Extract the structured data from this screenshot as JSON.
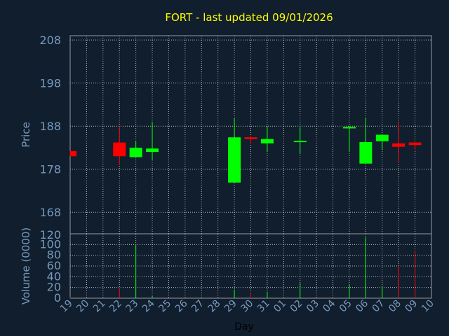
{
  "title": "FORT - last updated 09/01/2026",
  "colors": {
    "background": "#101e2e",
    "frame": "#999999",
    "grid": "#bbbbbb",
    "text": "#7799bb",
    "title": "#ffff00",
    "up": "#00ff00",
    "down": "#ff0000"
  },
  "chart_data": [
    {
      "type": "candlestick",
      "ylabel": "Price",
      "ylim": [
        163,
        209
      ],
      "yticks": [
        208,
        198,
        188,
        178,
        168
      ],
      "grid": true,
      "categories": [
        "19",
        "20",
        "21",
        "22",
        "23",
        "24",
        "25",
        "26",
        "27",
        "28",
        "29",
        "30",
        "31",
        "01",
        "02",
        "03",
        "04",
        "05",
        "06",
        "07",
        "08",
        "09",
        "10"
      ],
      "candles": [
        {
          "day": "19",
          "open": 182.2,
          "close": 181.0,
          "high": 182.2,
          "low": 181.0
        },
        {
          "day": "22",
          "open": 184.2,
          "close": 181.0,
          "high": 188.0,
          "low": 179.0
        },
        {
          "day": "23",
          "open": 180.8,
          "close": 183.0,
          "high": 184.5,
          "low": 180.8
        },
        {
          "day": "24",
          "open": 182.0,
          "close": 182.8,
          "high": 189.0,
          "low": 180.0
        },
        {
          "day": "29",
          "open": 174.9,
          "close": 185.4,
          "high": 190.0,
          "low": 174.9
        },
        {
          "day": "30",
          "open": 185.4,
          "close": 185.0,
          "high": 185.8,
          "low": 183.8
        },
        {
          "day": "31",
          "open": 184.0,
          "close": 185.0,
          "high": 188.0,
          "low": 182.0
        },
        {
          "day": "02",
          "open": 184.3,
          "close": 184.6,
          "high": 188.0,
          "low": 181.5
        },
        {
          "day": "05",
          "open": 187.5,
          "close": 187.8,
          "high": 188.0,
          "low": 182.0
        },
        {
          "day": "06",
          "open": 179.3,
          "close": 184.3,
          "high": 190.0,
          "low": 179.3
        },
        {
          "day": "07",
          "open": 184.5,
          "close": 186.0,
          "high": 186.0,
          "low": 182.5
        },
        {
          "day": "08",
          "open": 184.0,
          "close": 183.2,
          "high": 189.0,
          "low": 179.5
        },
        {
          "day": "09",
          "open": 184.2,
          "close": 183.6,
          "high": 184.2,
          "low": 182.5
        }
      ]
    },
    {
      "type": "bar",
      "ylabel": "Volume (0000)",
      "xlabel": "Day",
      "ylim": [
        0,
        120
      ],
      "yticks": [
        120,
        100,
        80,
        60,
        40,
        20,
        0
      ],
      "grid": true,
      "categories": [
        "19",
        "20",
        "21",
        "22",
        "23",
        "24",
        "25",
        "26",
        "27",
        "28",
        "29",
        "30",
        "31",
        "01",
        "02",
        "03",
        "04",
        "05",
        "06",
        "07",
        "08",
        "09",
        "10"
      ],
      "bars": [
        {
          "day": "19",
          "value": 2,
          "direction": "down"
        },
        {
          "day": "22",
          "value": 18,
          "direction": "down"
        },
        {
          "day": "23",
          "value": 100,
          "direction": "up"
        },
        {
          "day": "24",
          "value": 4,
          "direction": "up"
        },
        {
          "day": "29",
          "value": 16,
          "direction": "up"
        },
        {
          "day": "30",
          "value": 10,
          "direction": "down"
        },
        {
          "day": "31",
          "value": 12,
          "direction": "up"
        },
        {
          "day": "02",
          "value": 28,
          "direction": "up"
        },
        {
          "day": "05",
          "value": 26,
          "direction": "up"
        },
        {
          "day": "06",
          "value": 113,
          "direction": "up"
        },
        {
          "day": "07",
          "value": 22,
          "direction": "up"
        },
        {
          "day": "08",
          "value": 60,
          "direction": "down"
        },
        {
          "day": "09",
          "value": 89,
          "direction": "down"
        }
      ]
    }
  ]
}
